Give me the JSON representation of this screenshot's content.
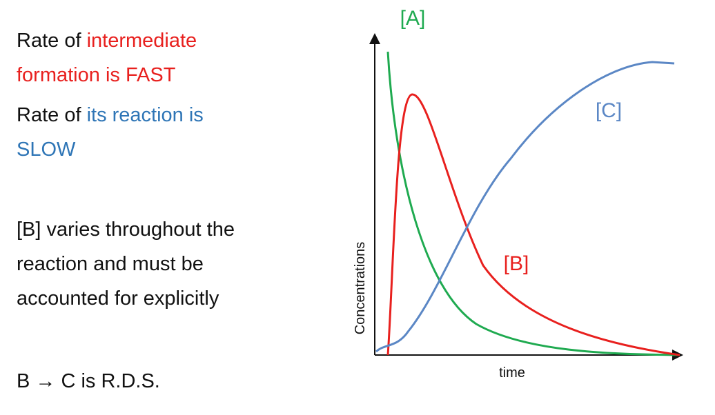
{
  "statements": [
    {
      "line_1": [
        "Rate of",
        "intermediate"
      ],
      "line_2": "formation is FAST"
    },
    {
      "line_1": [
        "Rate of",
        "its reaction is"
      ],
      "line_2": "SLOW"
    },
    {
      "lines": [
        "[B] varies throughout the",
        "reaction and must be",
        "accounted for explicitly"
      ]
    },
    {
      "text": "B → C is R.D.S."
    }
  ],
  "diagram": {
    "y_axis_label": "Concentrations",
    "x_axis_label": "time",
    "curve_labels": {
      "a": "[A]",
      "b": "[B]",
      "c": "[C]"
    }
  }
}
